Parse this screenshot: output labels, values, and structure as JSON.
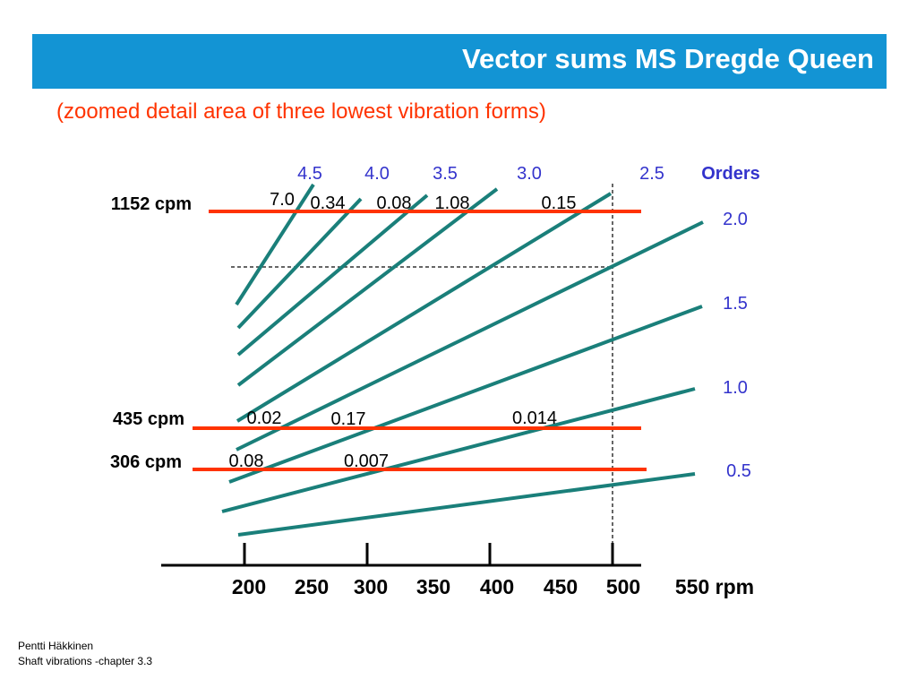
{
  "title": "Vector sums MS Dregde Queen",
  "subtitle": "(zoomed detail area of three lowest vibration forms)",
  "colors": {
    "title_bar": "#1394d4",
    "subtitle": "#ff3300",
    "cpm_lines": "#ff3300",
    "order_lines": "#1a7f7a",
    "order_labels": "#3333cc"
  },
  "diagram": {
    "orders_heading": "Orders",
    "top_order_labels": [
      "4.5",
      "4.0",
      "3.5",
      "3.0",
      "2.5"
    ],
    "right_order_labels": [
      "2.0",
      "1.5",
      "1.0",
      "0.5"
    ],
    "cpm_lines": [
      {
        "label": "1152 cpm",
        "values": [
          "7.0",
          "0.34",
          "0.08",
          "1.08",
          "0.15"
        ]
      },
      {
        "label": "435 cpm",
        "values": [
          "0.02",
          "0.17",
          "0.014"
        ]
      },
      {
        "label": "306 cpm",
        "values": [
          "0.08",
          "0.007"
        ]
      }
    ],
    "rpm_ticks": [
      "200",
      "250",
      "300",
      "350",
      "400",
      "450",
      "500"
    ],
    "rpm_last_label": "550 rpm"
  },
  "footer": {
    "author": "Pentti Häkkinen",
    "course": "Shaft vibrations  -chapter 3.3"
  }
}
